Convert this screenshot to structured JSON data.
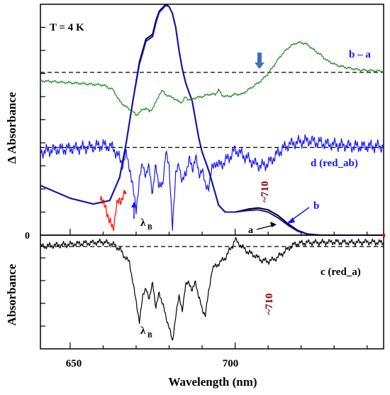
{
  "chart_data": [
    {
      "panel": "upper",
      "type": "line",
      "xlabel": "Wavelength (nm)",
      "ylabel": "Δ Absorbance",
      "xlim": [
        641,
        745
      ],
      "xticks": [
        650,
        700
      ],
      "xtick_labels": [
        "650",
        "700"
      ],
      "ytick_labels": [
        "0"
      ],
      "temperature_label": "T = 4 K",
      "series": [
        {
          "name": "a",
          "color": "#000000",
          "points": [
            [
              641,
              0.215
            ],
            [
              650,
              0.16
            ],
            [
              657,
              0.135
            ],
            [
              662,
              0.15
            ],
            [
              665,
              0.25
            ],
            [
              667,
              0.4
            ],
            [
              669,
              0.58
            ],
            [
              671,
              0.75
            ],
            [
              673,
              0.85
            ],
            [
              675,
              0.87
            ],
            [
              676,
              0.93
            ],
            [
              677,
              0.97
            ],
            [
              678,
              0.985
            ],
            [
              679,
              1.0
            ],
            [
              680,
              0.99
            ],
            [
              681,
              0.96
            ],
            [
              682,
              0.9
            ],
            [
              683,
              0.8
            ],
            [
              684,
              0.72
            ],
            [
              685,
              0.66
            ],
            [
              686,
              0.62
            ],
            [
              687,
              0.58
            ],
            [
              688,
              0.5
            ],
            [
              689,
              0.42
            ],
            [
              690,
              0.36
            ],
            [
              691,
              0.32
            ],
            [
              692,
              0.28
            ],
            [
              693,
              0.23
            ],
            [
              694,
              0.18
            ],
            [
              695,
              0.13
            ],
            [
              697,
              0.1
            ],
            [
              700,
              0.1
            ],
            [
              704,
              0.113
            ],
            [
              707,
              0.118
            ],
            [
              710,
              0.11
            ],
            [
              713,
              0.085
            ],
            [
              716,
              0.05
            ],
            [
              719,
              0.02
            ],
            [
              722,
              0.005
            ],
            [
              726,
              0.0
            ],
            [
              745,
              0.0
            ]
          ]
        },
        {
          "name": "b",
          "color": "#1515b0",
          "points": [
            [
              641,
              0.215
            ],
            [
              650,
              0.16
            ],
            [
              657,
              0.135
            ],
            [
              662,
              0.15
            ],
            [
              665,
              0.25
            ],
            [
              667,
              0.4
            ],
            [
              669,
              0.58
            ],
            [
              671,
              0.74
            ],
            [
              673,
              0.84
            ],
            [
              675,
              0.86
            ],
            [
              676,
              0.92
            ],
            [
              677,
              0.965
            ],
            [
              678,
              0.98
            ],
            [
              679,
              0.995
            ],
            [
              680,
              0.99
            ],
            [
              681,
              0.96
            ],
            [
              682,
              0.9
            ],
            [
              683,
              0.8
            ],
            [
              684,
              0.72
            ],
            [
              685,
              0.66
            ],
            [
              686,
              0.62
            ],
            [
              687,
              0.58
            ],
            [
              688,
              0.5
            ],
            [
              689,
              0.42
            ],
            [
              690,
              0.36
            ],
            [
              691,
              0.32
            ],
            [
              692,
              0.28
            ],
            [
              693,
              0.23
            ],
            [
              694,
              0.18
            ],
            [
              695,
              0.13
            ],
            [
              697,
              0.1
            ],
            [
              700,
              0.1
            ],
            [
              704,
              0.107
            ],
            [
              707,
              0.11
            ],
            [
              710,
              0.1
            ],
            [
              713,
              0.075
            ],
            [
              716,
              0.043
            ],
            [
              719,
              0.017
            ],
            [
              722,
              0.004
            ],
            [
              726,
              0.0
            ],
            [
              745,
              0.0
            ]
          ]
        },
        {
          "name": "b – a",
          "color": "#1a8c1a",
          "points": [
            [
              641,
              0.668
            ],
            [
              645,
              0.665
            ],
            [
              650,
              0.66
            ],
            [
              655,
              0.655
            ],
            [
              660,
              0.65
            ],
            [
              663,
              0.63
            ],
            [
              665,
              0.58
            ],
            [
              667,
              0.555
            ],
            [
              669,
              0.535
            ],
            [
              670,
              0.52
            ],
            [
              671,
              0.53
            ],
            [
              672,
              0.545
            ],
            [
              673,
              0.55
            ],
            [
              674,
              0.535
            ],
            [
              675,
              0.55
            ],
            [
              676,
              0.575
            ],
            [
              677,
              0.61
            ],
            [
              678,
              0.625
            ],
            [
              679,
              0.61
            ],
            [
              680,
              0.6
            ],
            [
              681,
              0.598
            ],
            [
              682,
              0.585
            ],
            [
              683,
              0.58
            ],
            [
              684,
              0.575
            ],
            [
              685,
              0.6
            ],
            [
              686,
              0.585
            ],
            [
              687,
              0.59
            ],
            [
              688,
              0.595
            ],
            [
              690,
              0.6
            ],
            [
              692,
              0.61
            ],
            [
              694,
              0.61
            ],
            [
              695,
              0.63
            ],
            [
              696,
              0.605
            ],
            [
              698,
              0.6
            ],
            [
              700,
              0.61
            ],
            [
              702,
              0.61
            ],
            [
              704,
              0.63
            ],
            [
              706,
              0.65
            ],
            [
              708,
              0.67
            ],
            [
              710,
              0.7
            ],
            [
              712,
              0.74
            ],
            [
              714,
              0.78
            ],
            [
              716,
              0.81
            ],
            [
              718,
              0.83
            ],
            [
              720,
              0.835
            ],
            [
              722,
              0.825
            ],
            [
              724,
              0.8
            ],
            [
              726,
              0.78
            ],
            [
              728,
              0.755
            ],
            [
              731,
              0.735
            ],
            [
              734,
              0.725
            ],
            [
              738,
              0.715
            ],
            [
              745,
              0.71
            ]
          ]
        },
        {
          "name": "d (red_ab)",
          "color": "#1515ff",
          "points": [
            [
              641,
              0.36
            ],
            [
              645,
              0.37
            ],
            [
              650,
              0.375
            ],
            [
              655,
              0.38
            ],
            [
              660,
              0.39
            ],
            [
              663,
              0.38
            ],
            [
              665,
              0.33
            ],
            [
              666,
              0.31
            ],
            [
              667,
              0.35
            ],
            [
              668,
              0.3
            ],
            [
              669,
              0.2
            ],
            [
              670,
              0.12
            ],
            [
              671,
              0.23
            ],
            [
              672,
              0.32
            ],
            [
              673,
              0.25
            ],
            [
              674,
              0.3
            ],
            [
              675,
              0.18
            ],
            [
              676,
              0.3
            ],
            [
              677,
              0.22
            ],
            [
              678,
              0.2
            ],
            [
              679,
              0.38
            ],
            [
              680,
              0.28
            ],
            [
              681,
              0.05
            ],
            [
              682,
              0.25
            ],
            [
              683,
              0.32
            ],
            [
              684,
              0.22
            ],
            [
              685,
              0.27
            ],
            [
              686,
              0.33
            ],
            [
              687,
              0.28
            ],
            [
              688,
              0.35
            ],
            [
              689,
              0.25
            ],
            [
              690,
              0.3
            ],
            [
              691,
              0.2
            ],
            [
              692,
              0.22
            ],
            [
              693,
              0.28
            ],
            [
              694,
              0.32
            ],
            [
              695,
              0.3
            ],
            [
              697,
              0.32
            ],
            [
              699,
              0.35
            ],
            [
              700,
              0.37
            ],
            [
              702,
              0.35
            ],
            [
              704,
              0.33
            ],
            [
              706,
              0.31
            ],
            [
              708,
              0.3
            ],
            [
              710,
              0.31
            ],
            [
              712,
              0.34
            ],
            [
              714,
              0.37
            ],
            [
              716,
              0.39
            ],
            [
              718,
              0.4
            ],
            [
              720,
              0.405
            ],
            [
              722,
              0.41
            ],
            [
              724,
              0.405
            ],
            [
              726,
              0.4
            ],
            [
              728,
              0.395
            ],
            [
              732,
              0.39
            ],
            [
              736,
              0.385
            ],
            [
              740,
              0.385
            ],
            [
              745,
              0.385
            ]
          ]
        },
        {
          "name": "",
          "color": "#ff0000",
          "points": [
            [
              659,
              0.18
            ],
            [
              660,
              0.13
            ],
            [
              661,
              0.12
            ],
            [
              662,
              0.05
            ],
            [
              663,
              0.03
            ],
            [
              664,
              0.12
            ],
            [
              665,
              0.15
            ],
            [
              666,
              0.17
            ],
            [
              667,
              0.18
            ]
          ]
        }
      ],
      "dashed_baselines": [
        0.705,
        0.38
      ],
      "annotations": [
        {
          "text": "~710",
          "color": "#8b0000",
          "x": 709
        },
        {
          "text": "λ",
          "subscript": "B",
          "color": "#000000",
          "x": 670
        },
        {
          "text": "b",
          "color": "#1515ff",
          "x": 727
        },
        {
          "text": "a",
          "color": "#000000",
          "x": 711
        },
        {
          "text": "d (red_ab)",
          "color": "#1515ff"
        },
        {
          "text": "b – a",
          "color": "#1515ff"
        }
      ]
    },
    {
      "panel": "lower",
      "type": "line",
      "xlabel": "Wavelength (nm)",
      "ylabel": "Absorbance",
      "xlim": [
        641,
        745
      ],
      "series": [
        {
          "name": "c (red_a)",
          "color": "#000000",
          "points": [
            [
              641,
              0.9
            ],
            [
              645,
              0.91
            ],
            [
              650,
              0.92
            ],
            [
              655,
              0.93
            ],
            [
              660,
              0.94
            ],
            [
              663,
              0.92
            ],
            [
              665,
              0.88
            ],
            [
              666,
              0.83
            ],
            [
              667,
              0.8
            ],
            [
              668,
              0.75
            ],
            [
              669,
              0.6
            ],
            [
              670,
              0.4
            ],
            [
              671,
              0.25
            ],
            [
              672,
              0.45
            ],
            [
              673,
              0.55
            ],
            [
              674,
              0.42
            ],
            [
              675,
              0.6
            ],
            [
              676,
              0.35
            ],
            [
              677,
              0.5
            ],
            [
              678,
              0.4
            ],
            [
              679,
              0.28
            ],
            [
              680,
              0.2
            ],
            [
              681,
              0.05
            ],
            [
              682,
              0.3
            ],
            [
              683,
              0.45
            ],
            [
              684,
              0.35
            ],
            [
              685,
              0.55
            ],
            [
              686,
              0.6
            ],
            [
              687,
              0.5
            ],
            [
              688,
              0.6
            ],
            [
              689,
              0.45
            ],
            [
              690,
              0.35
            ],
            [
              691,
              0.3
            ],
            [
              692,
              0.5
            ],
            [
              693,
              0.7
            ],
            [
              695,
              0.75
            ],
            [
              697,
              0.8
            ],
            [
              699,
              0.9
            ],
            [
              700,
              0.96
            ],
            [
              702,
              0.9
            ],
            [
              704,
              0.85
            ],
            [
              706,
              0.82
            ],
            [
              708,
              0.78
            ],
            [
              710,
              0.77
            ],
            [
              712,
              0.79
            ],
            [
              714,
              0.83
            ],
            [
              716,
              0.88
            ],
            [
              718,
              0.92
            ],
            [
              720,
              0.93
            ],
            [
              722,
              0.935
            ],
            [
              726,
              0.935
            ],
            [
              730,
              0.94
            ],
            [
              735,
              0.935
            ],
            [
              740,
              0.94
            ],
            [
              745,
              0.935
            ]
          ]
        }
      ],
      "dashed_baselines": [
        0.9
      ],
      "annotations": [
        {
          "text": "~710",
          "color": "#8b0000",
          "x": 710
        },
        {
          "text": "λ",
          "subscript": "B",
          "color": "#000000",
          "x": 671
        },
        {
          "text": "c (red_a)",
          "color": "#000000"
        }
      ]
    }
  ]
}
